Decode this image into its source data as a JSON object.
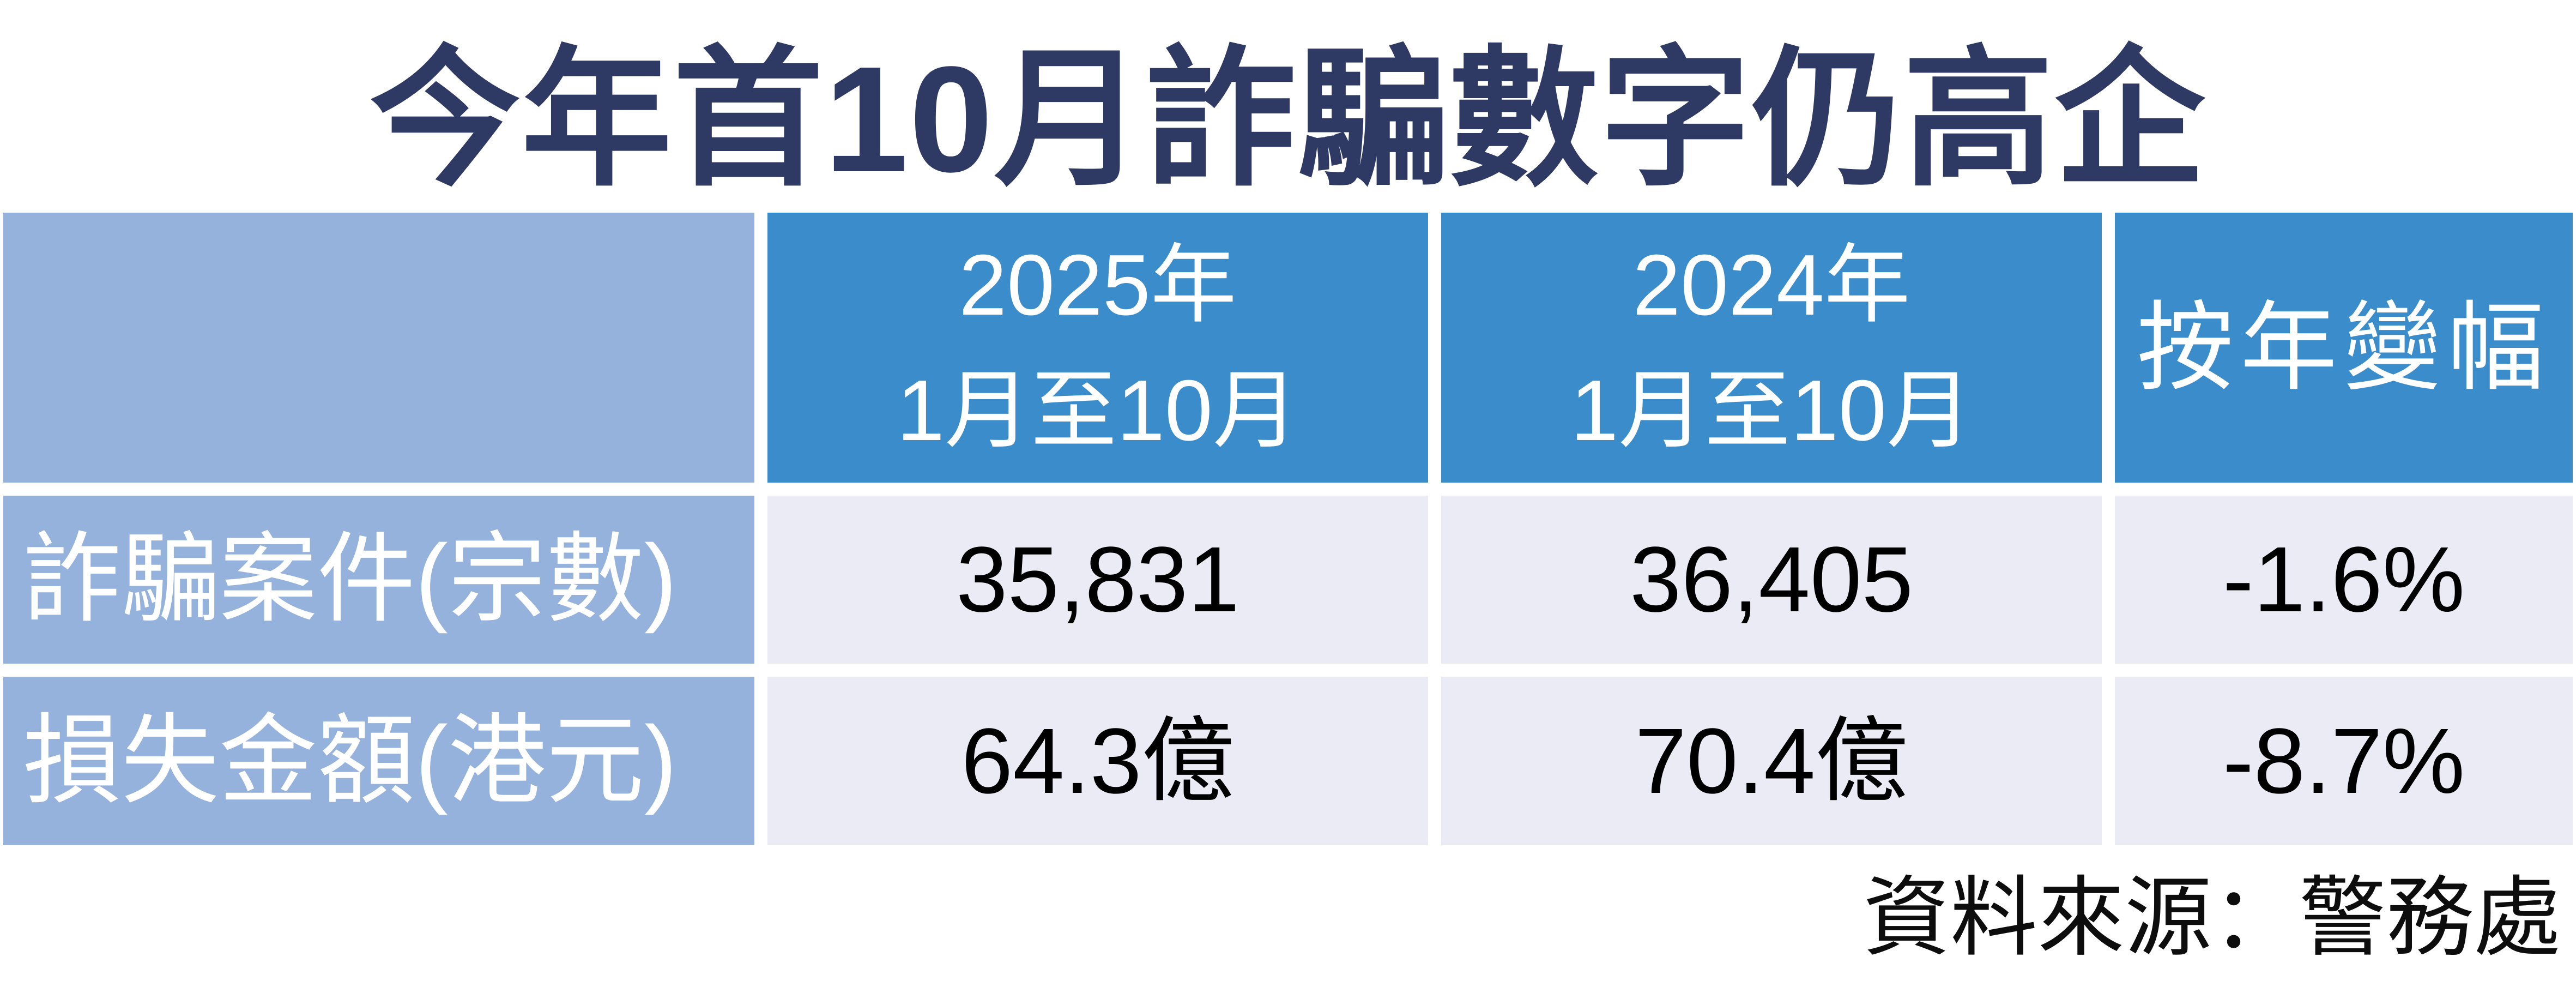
{
  "title": "今年首10月詐騙數字仍高企",
  "table": {
    "header": {
      "col2": {
        "line1": "2025年",
        "line2": "1月至10月"
      },
      "col3": {
        "line1": "2024年",
        "line2": "1月至10月"
      },
      "col4": "按年變幅"
    },
    "rows": [
      {
        "label": "詐騙案件(宗數)",
        "values": [
          "35,831",
          "36,405",
          "-1.6%"
        ]
      },
      {
        "label": "損失金額(港元)",
        "values": [
          "64.3億",
          "70.4億",
          "-8.7%"
        ]
      }
    ]
  },
  "source": "資料來源：警務處",
  "colors": {
    "title_navy": "#2e3a64",
    "header_blue": "#3a8cca",
    "label_blue": "#95b2dd",
    "data_cell_bg": "#eaebf4",
    "text_black": "#000000",
    "text_white": "#ffffff",
    "background": "#ffffff"
  },
  "chart_data": {
    "type": "table",
    "title": "今年首10月詐騙數字仍高企",
    "columns": [
      "",
      "2025年1月至10月",
      "2024年1月至10月",
      "按年變幅"
    ],
    "rows": [
      [
        "詐騙案件(宗數)",
        "35,831",
        "36,405",
        "-1.6%"
      ],
      [
        "損失金額(港元)",
        "64.3億",
        "70.4億",
        "-8.7%"
      ]
    ],
    "source": "資料來源：警務處",
    "numeric": {
      "fraud_cases_2025_jan_to_oct": 35831,
      "fraud_cases_2024_jan_to_oct": 36405,
      "fraud_cases_yoy_change_pct": -1.6,
      "loss_hkd_billion_2025_jan_to_oct": 64.3,
      "loss_hkd_billion_2024_jan_to_oct": 70.4,
      "loss_yoy_change_pct": -8.7
    },
    "layout": {
      "legend": "none",
      "grid": "off"
    }
  }
}
